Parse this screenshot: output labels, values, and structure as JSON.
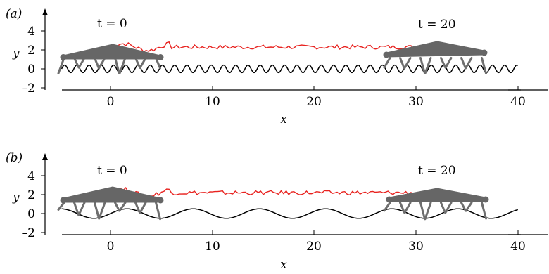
{
  "figure": {
    "panels": [
      {
        "tag": "(a)",
        "xlabel": "x",
        "ylabel": "y",
        "xticks": [
          "0",
          "10",
          "20",
          "30",
          "40"
        ],
        "yticks": [
          "4",
          "2",
          "0",
          "–2"
        ],
        "time_start": "t = 0",
        "time_end": "t = 20",
        "terrain": "short-wavelength sinusoid"
      },
      {
        "tag": "(b)",
        "xlabel": "x",
        "ylabel": "y",
        "xticks": [
          "0",
          "10",
          "20",
          "30",
          "40"
        ],
        "yticks": [
          "4",
          "2",
          "0",
          "–2"
        ],
        "time_start": "t = 0",
        "time_end": "t = 20",
        "terrain": "long-wavelength sinusoid"
      }
    ],
    "colors": {
      "track": "#e8221f",
      "robot": "#666666",
      "terrain": "#000000"
    }
  },
  "chart_data": [
    {
      "type": "line",
      "xlim": [
        -5,
        40
      ],
      "ylim": [
        -2,
        5
      ],
      "terrain": {
        "amplitude": 0.4,
        "wavelength": 1.2,
        "x_range": [
          -5,
          40
        ]
      },
      "robot_positions": [
        {
          "x_center": 0,
          "label": "t = 0"
        },
        {
          "x_center": 32,
          "label": "t = 20"
        }
      ],
      "track": {
        "x_range": [
          0,
          30
        ],
        "y_mean": 2.3,
        "color": "#e8221f"
      }
    },
    {
      "type": "line",
      "xlim": [
        -5,
        40
      ],
      "ylim": [
        -2,
        5
      ],
      "terrain": {
        "amplitude": 0.5,
        "wavelength": 6.5,
        "x_range": [
          -5,
          40
        ]
      },
      "robot_positions": [
        {
          "x_center": 0,
          "label": "t = 0"
        },
        {
          "x_center": 32,
          "label": "t = 20"
        }
      ],
      "track": {
        "x_range": [
          0,
          30
        ],
        "y_mean": 2.2,
        "color": "#e8221f"
      }
    }
  ]
}
